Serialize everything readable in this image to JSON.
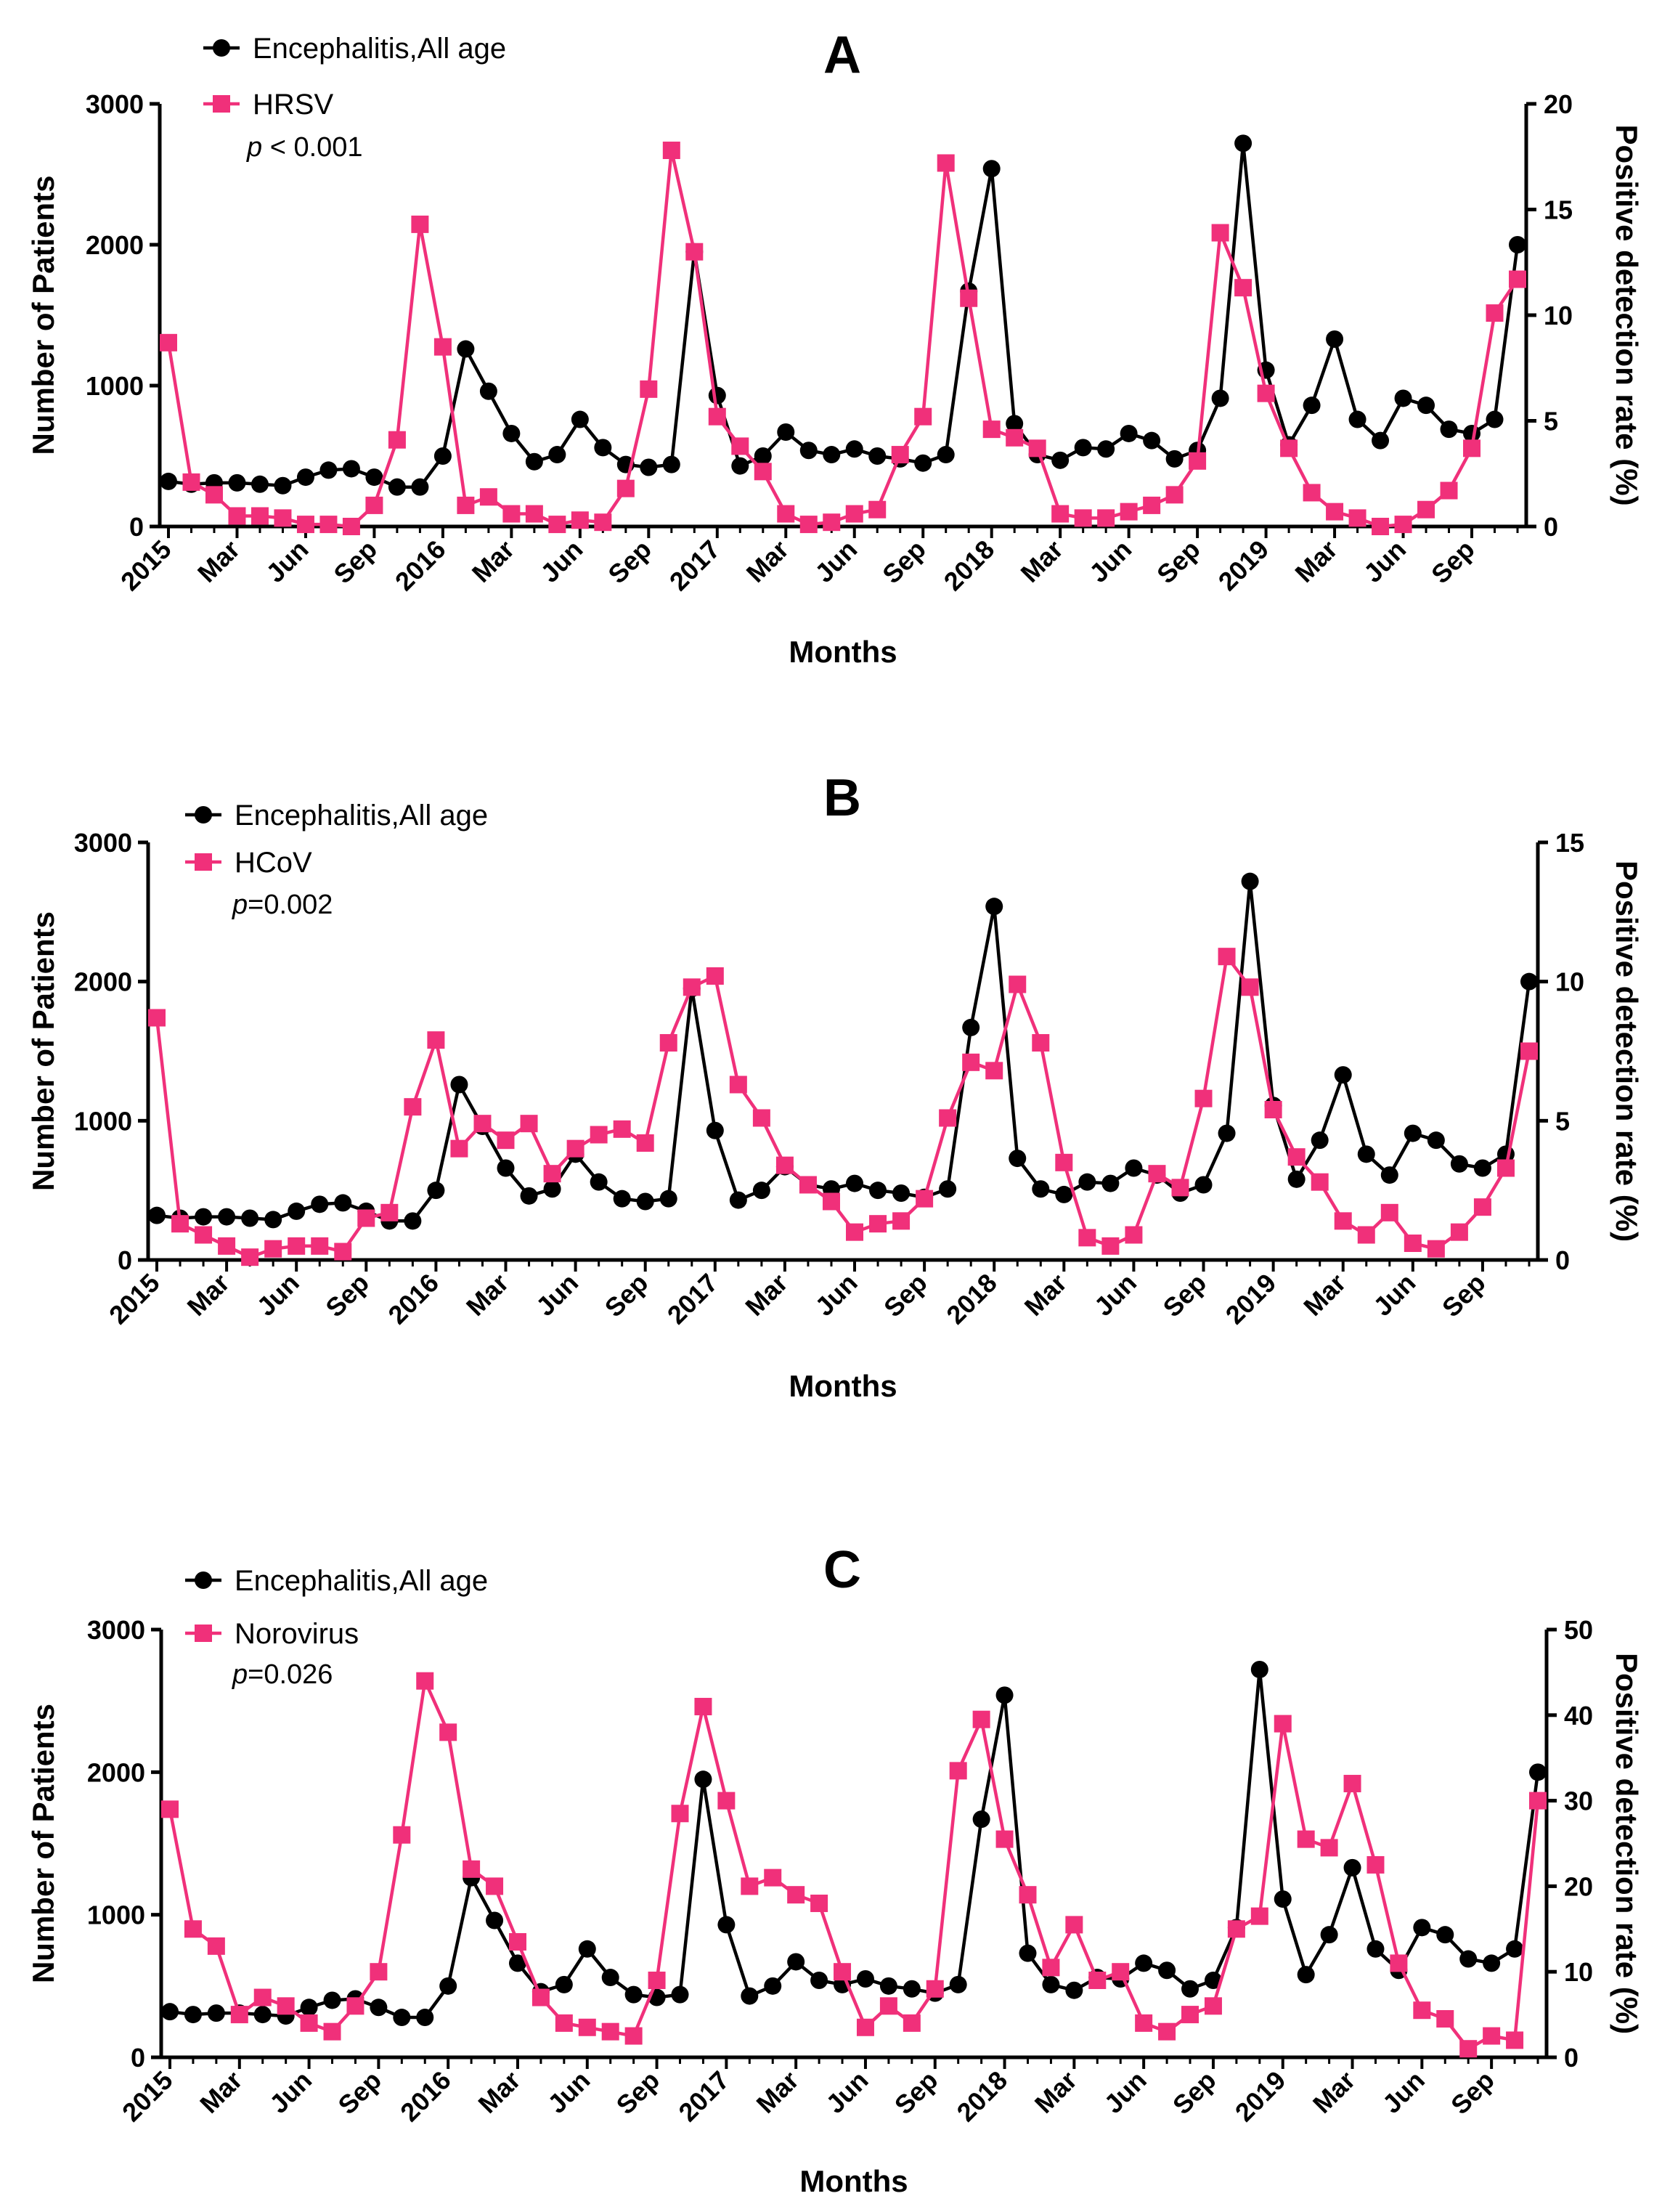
{
  "chart_data": [
    {
      "type": "line",
      "panel": "A",
      "title": "A",
      "xlabel": "Months",
      "ylabel": "Number of Patients",
      "y2label": "Positive detection rate (%)",
      "ylim": [
        0,
        3000
      ],
      "y2lim": [
        0,
        20
      ],
      "yticks": [
        0,
        1000,
        2000,
        3000
      ],
      "y2ticks": [
        0,
        5,
        10,
        15,
        20
      ],
      "x_tick_labels": [
        "2015",
        "Mar",
        "Jun",
        "Sep",
        "2016",
        "Mar",
        "Jun",
        "Sep",
        "2017",
        "Mar",
        "Jun",
        "Sep",
        "2018",
        "Mar",
        "Jun",
        "Sep",
        "2019",
        "Mar",
        "Jun",
        "Sep"
      ],
      "pvalue": {
        "prefix": "p",
        "text": " < 0.001"
      },
      "legend_position": "top-left",
      "series": [
        {
          "name": "Encephalitis,All age",
          "axis": "left",
          "color": "#000000",
          "marker": "circle",
          "values": [
            320,
            300,
            310,
            310,
            300,
            290,
            350,
            400,
            410,
            350,
            280,
            280,
            500,
            1260,
            960,
            660,
            460,
            510,
            760,
            560,
            440,
            420,
            440,
            1950,
            930,
            430,
            500,
            670,
            540,
            510,
            550,
            500,
            480,
            450,
            510,
            1670,
            2540,
            730,
            510,
            470,
            560,
            550,
            660,
            610,
            480,
            540,
            910,
            2720,
            1110,
            580,
            860,
            1330,
            760,
            610,
            910,
            860,
            690,
            660,
            760,
            2000
          ]
        },
        {
          "name": "HRSV",
          "axis": "right",
          "color": "#f0307a",
          "marker": "square",
          "values": [
            8.7,
            2.1,
            1.5,
            0.5,
            0.5,
            0.4,
            0.1,
            0.1,
            0.0,
            1.0,
            4.1,
            14.3,
            8.5,
            1.0,
            1.4,
            0.6,
            0.6,
            0.1,
            0.3,
            0.2,
            1.8,
            6.5,
            17.8,
            13.0,
            5.2,
            3.8,
            2.6,
            0.6,
            0.1,
            0.2,
            0.6,
            0.8,
            3.4,
            5.2,
            17.2,
            10.8,
            4.6,
            4.2,
            3.7,
            0.6,
            0.4,
            0.4,
            0.7,
            1.0,
            1.5,
            3.1,
            13.9,
            11.3,
            6.3,
            3.7,
            1.6,
            0.7,
            0.4,
            0.0,
            0.1,
            0.8,
            1.7,
            3.7,
            10.1,
            11.7
          ]
        }
      ]
    },
    {
      "type": "line",
      "panel": "B",
      "title": "B",
      "xlabel": "Months",
      "ylabel": "Number of Patients",
      "y2label": "Positive detection rate (%)",
      "ylim": [
        0,
        3000
      ],
      "y2lim": [
        0,
        15
      ],
      "yticks": [
        0,
        1000,
        2000,
        3000
      ],
      "y2ticks": [
        0,
        5,
        10,
        15
      ],
      "x_tick_labels": [
        "2015",
        "Mar",
        "Jun",
        "Sep",
        "2016",
        "Mar",
        "Jun",
        "Sep",
        "2017",
        "Mar",
        "Jun",
        "Sep",
        "2018",
        "Mar",
        "Jun",
        "Sep",
        "2019",
        "Mar",
        "Jun",
        "Sep"
      ],
      "pvalue": {
        "prefix": "p",
        "text": "=0.002"
      },
      "legend_position": "top-left",
      "series": [
        {
          "name": "Encephalitis,All age",
          "axis": "left",
          "color": "#000000",
          "marker": "circle",
          "values": [
            320,
            300,
            310,
            310,
            300,
            290,
            350,
            400,
            410,
            350,
            280,
            280,
            500,
            1260,
            960,
            660,
            460,
            510,
            760,
            560,
            440,
            420,
            440,
            1950,
            930,
            430,
            500,
            670,
            540,
            510,
            550,
            500,
            480,
            450,
            510,
            1670,
            2540,
            730,
            510,
            470,
            560,
            550,
            660,
            610,
            480,
            540,
            910,
            2720,
            1110,
            580,
            860,
            1330,
            760,
            610,
            910,
            860,
            690,
            660,
            760,
            2000
          ]
        },
        {
          "name": "HCoV",
          "axis": "right",
          "color": "#f0307a",
          "marker": "square",
          "values": [
            8.7,
            1.3,
            0.9,
            0.5,
            0.1,
            0.4,
            0.5,
            0.5,
            0.3,
            1.5,
            1.7,
            5.5,
            7.9,
            4.0,
            4.9,
            4.3,
            4.9,
            3.1,
            4.0,
            4.5,
            4.7,
            4.2,
            7.8,
            9.8,
            10.2,
            6.3,
            5.1,
            3.4,
            2.7,
            2.1,
            1.0,
            1.3,
            1.4,
            2.2,
            5.1,
            7.1,
            6.8,
            9.9,
            7.8,
            3.5,
            0.8,
            0.5,
            0.9,
            3.1,
            2.6,
            5.8,
            10.9,
            9.8,
            5.4,
            3.7,
            2.8,
            1.4,
            0.9,
            1.7,
            0.6,
            0.4,
            1.0,
            1.9,
            3.3,
            7.5
          ]
        }
      ]
    },
    {
      "type": "line",
      "panel": "C",
      "title": "C",
      "xlabel": "Months",
      "ylabel": "Number of Patients",
      "y2label": "Positive detection rate (%)",
      "ylim": [
        0,
        3000
      ],
      "y2lim": [
        0,
        50
      ],
      "yticks": [
        0,
        1000,
        2000,
        3000
      ],
      "y2ticks": [
        0,
        10,
        20,
        30,
        40,
        50
      ],
      "x_tick_labels": [
        "2015",
        "Mar",
        "Jun",
        "Sep",
        "2016",
        "Mar",
        "Jun",
        "Sep",
        "2017",
        "Mar",
        "Jun",
        "Sep",
        "2018",
        "Mar",
        "Jun",
        "Sep",
        "2019",
        "Mar",
        "Jun",
        "Sep"
      ],
      "pvalue": {
        "prefix": "p",
        "text": "=0.026"
      },
      "legend_position": "top-left",
      "series": [
        {
          "name": "Encephalitis,All age",
          "axis": "left",
          "color": "#000000",
          "marker": "circle",
          "values": [
            320,
            300,
            310,
            310,
            300,
            290,
            350,
            400,
            410,
            350,
            280,
            280,
            500,
            1260,
            960,
            660,
            460,
            510,
            760,
            560,
            440,
            420,
            440,
            1950,
            930,
            430,
            500,
            670,
            540,
            510,
            550,
            500,
            480,
            450,
            510,
            1670,
            2540,
            730,
            510,
            470,
            560,
            550,
            660,
            610,
            480,
            540,
            910,
            2720,
            1110,
            580,
            860,
            1330,
            760,
            610,
            910,
            860,
            690,
            660,
            760,
            2000
          ]
        },
        {
          "name": "Norovirus",
          "axis": "right",
          "color": "#f0307a",
          "marker": "square",
          "values": [
            29.0,
            15.0,
            13.0,
            5.0,
            7.0,
            6.0,
            4.0,
            3.0,
            6.0,
            10.0,
            26.0,
            44.0,
            38.0,
            22.0,
            20.0,
            13.5,
            7.0,
            4.0,
            3.5,
            3.0,
            2.5,
            9.0,
            28.5,
            41.0,
            30.0,
            20.0,
            21.0,
            19.0,
            18.0,
            10.0,
            3.5,
            6.0,
            4.0,
            8.0,
            33.5,
            39.5,
            25.5,
            19.0,
            10.5,
            15.5,
            9.0,
            10.0,
            4.0,
            3.0,
            5.0,
            6.0,
            15.0,
            16.5,
            39.0,
            25.5,
            24.5,
            32.0,
            22.5,
            11.0,
            5.5,
            4.5,
            1.0,
            2.5,
            2.0,
            30.0
          ]
        }
      ]
    }
  ]
}
